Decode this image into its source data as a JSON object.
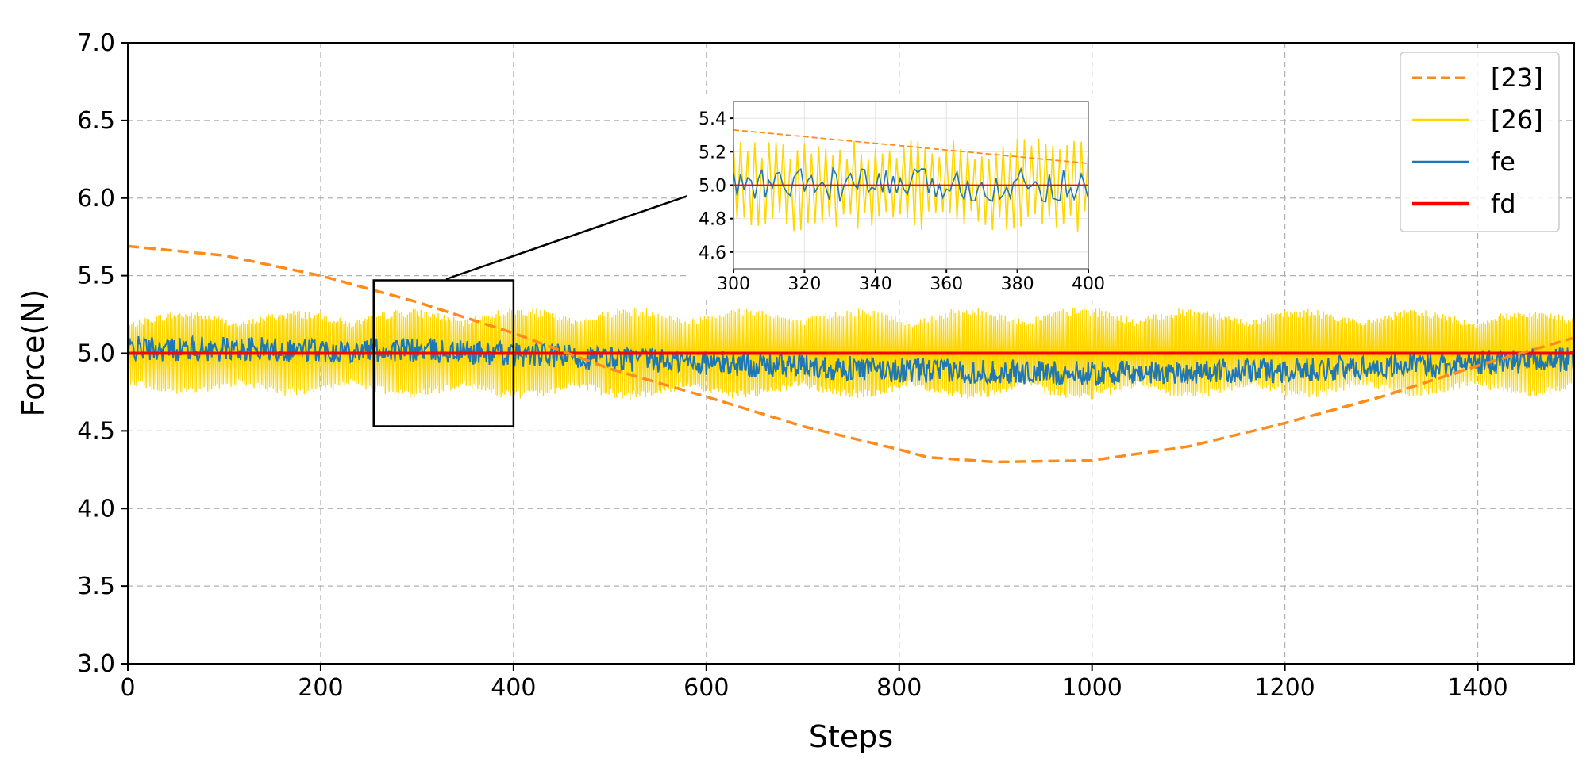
{
  "chart_data": {
    "type": "line",
    "title": "",
    "xlabel": "Steps",
    "ylabel": "Force(N)",
    "xlim": [
      0,
      1500
    ],
    "ylim": [
      3.0,
      7.0
    ],
    "xticks": [
      0,
      200,
      400,
      600,
      800,
      1000,
      1200,
      1400
    ],
    "xtick_labels": [
      "0",
      "200",
      "400",
      "600",
      "800",
      "1000",
      "1200",
      "1400"
    ],
    "yticks": [
      3.0,
      3.5,
      4.0,
      4.5,
      5.0,
      5.5,
      6.0,
      6.5,
      7.0
    ],
    "ytick_labels": [
      "3.0",
      "3.5",
      "4.0",
      "4.5",
      "5.0",
      "5.5",
      "6.0",
      "6.5",
      "7.0"
    ],
    "grid": true,
    "legend_position": "top-right",
    "series": [
      {
        "name": "[23]",
        "color": "#ff8c1a",
        "style": "dashed",
        "x": [
          0,
          100,
          200,
          300,
          400,
          500,
          600,
          700,
          800,
          830,
          900,
          1000,
          1100,
          1200,
          1300,
          1400,
          1500
        ],
        "y": [
          5.69,
          5.63,
          5.5,
          5.33,
          5.13,
          4.9,
          4.72,
          4.53,
          4.38,
          4.33,
          4.3,
          4.31,
          4.4,
          4.55,
          4.72,
          4.92,
          5.1
        ]
      },
      {
        "name": "[26]",
        "color": "#ffd700",
        "style": "solid",
        "center": 5.0,
        "envelope": {
          "x": [
            0,
            200,
            400,
            600,
            800,
            1000,
            1200,
            1400,
            1500
          ],
          "amplitude": [
            0.27,
            0.28,
            0.3,
            0.3,
            0.29,
            0.3,
            0.29,
            0.28,
            0.28
          ]
        }
      },
      {
        "name": "fe",
        "color": "#1f77b4",
        "style": "solid",
        "mean": {
          "x": [
            0,
            300,
            600,
            800,
            1000,
            1200,
            1400,
            1500
          ],
          "y": [
            5.03,
            5.02,
            4.94,
            4.89,
            4.87,
            4.89,
            4.94,
            4.96
          ]
        },
        "noise_amplitude": 0.08
      },
      {
        "name": "fd",
        "color": "#ff0000",
        "style": "solid",
        "x": [
          0,
          1500
        ],
        "y": [
          5.0,
          5.0
        ]
      }
    ],
    "zoom_box": {
      "xlim": [
        255,
        400
      ],
      "ylim": [
        4.53,
        5.47
      ]
    },
    "inset": {
      "xlim": [
        300,
        400
      ],
      "ylim": [
        4.5,
        5.5
      ],
      "xticks": [
        300,
        320,
        340,
        360,
        380,
        400
      ],
      "xtick_labels": [
        "300",
        "320",
        "340",
        "360",
        "380",
        "400"
      ],
      "yticks": [
        4.6,
        4.8,
        5.0,
        5.2,
        5.4
      ],
      "ytick_labels": [
        "4.6",
        "4.8",
        "5.0",
        "5.2",
        "5.4"
      ],
      "dashed_series": {
        "x": [
          300,
          400
        ],
        "y": [
          5.33,
          5.13
        ]
      },
      "yellow_amplitude": 0.28,
      "blue_amplitude": 0.1
    }
  }
}
